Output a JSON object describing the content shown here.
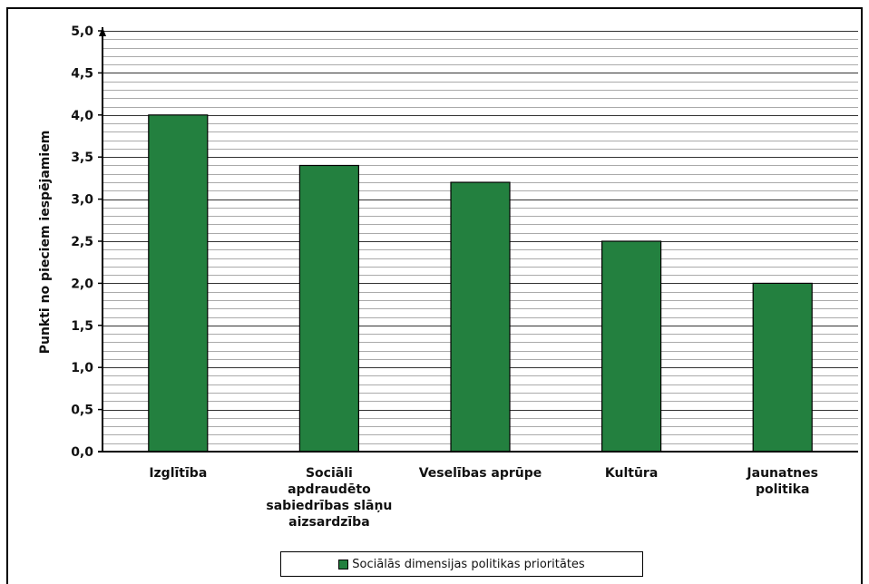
{
  "chart_data": {
    "type": "bar",
    "categories": [
      [
        "Izglītība"
      ],
      [
        "Sociāli",
        "apdraudēto",
        "sabiedrības slāņu",
        "aizsardzība"
      ],
      [
        "Veselības aprūpe"
      ],
      [
        "Kultūra"
      ],
      [
        "Jaunatnes",
        "politika"
      ]
    ],
    "series": [
      {
        "name": "Sociālās dimensijas politikas prioritātes",
        "values": [
          4.0,
          3.4,
          3.2,
          2.5,
          2.0
        ],
        "color": "#23803f"
      }
    ],
    "ylabel": "Punkti no pieciem iespējamiem",
    "ylim": [
      0,
      5
    ],
    "yticks": [
      "0,0",
      "0,5",
      "1,0",
      "1,5",
      "2,0",
      "2,5",
      "3,0",
      "3,5",
      "4,0",
      "4,5",
      "5,0"
    ],
    "grid": true,
    "legend_position": "bottom",
    "background_color": "#ffffff"
  }
}
